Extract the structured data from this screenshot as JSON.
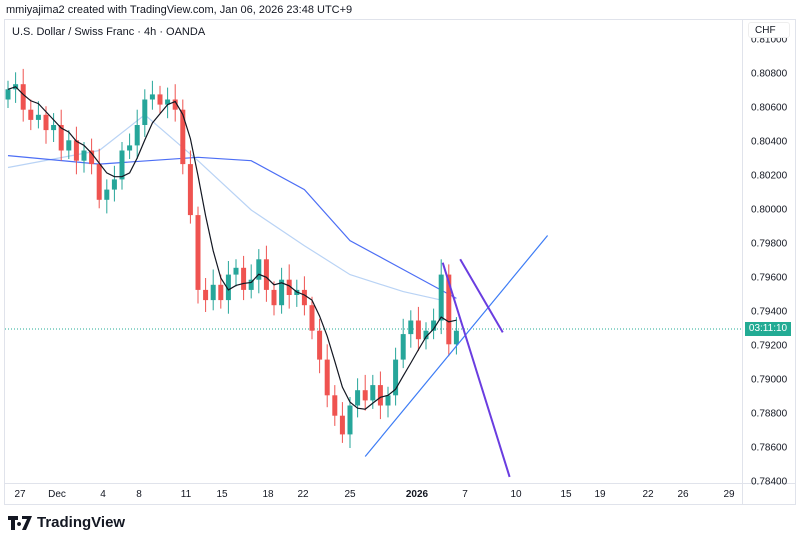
{
  "credit": "mmiyajima2 created with TradingView.com, Jan 06, 2026 23:48 UTC+9",
  "symbol_legend": "U.S. Dollar / Swiss Franc · 4h · OANDA",
  "currency": "CHF",
  "countdown": "03:11:10",
  "brand": "TradingView",
  "colors": {
    "up": "#26a69a",
    "down": "#ef5350",
    "ma_short": "#131722",
    "ma_long": "#4c6ef5",
    "ma_mid": "#b9d3f5",
    "trend": "#3d7cf5",
    "purple": "#6a3de0",
    "price_line": "#22ab94"
  },
  "chart_data": {
    "type": "candlestick",
    "yaxis": {
      "ticks": [
        "0.81000",
        "0.80800",
        "0.80600",
        "0.80400",
        "0.80200",
        "0.80000",
        "0.79800",
        "0.79600",
        "0.79400",
        "0.79200",
        "0.79000",
        "0.78800",
        "0.78600",
        "0.78400"
      ],
      "range": [
        0.784,
        0.81
      ]
    },
    "xaxis": {
      "ticks": [
        "27",
        "Dec",
        "4",
        "8",
        "11",
        "15",
        "18",
        "22",
        "25",
        "2026",
        "7",
        "10",
        "15",
        "19",
        "22",
        "26",
        "29"
      ]
    },
    "first_open": 0.8065,
    "close": [
      0.8071,
      0.8074,
      0.8059,
      0.8053,
      0.8056,
      0.8047,
      0.805,
      0.8035,
      0.8041,
      0.8029,
      0.8035,
      0.8027,
      0.8006,
      0.8012,
      0.8018,
      0.8035,
      0.8038,
      0.805,
      0.8065,
      0.8068,
      0.8062,
      0.8065,
      0.8059,
      0.8027,
      0.7997,
      0.7953,
      0.7947,
      0.7956,
      0.7947,
      0.7962,
      0.7966,
      0.7953,
      0.7959,
      0.7971,
      0.7953,
      0.7944,
      0.7959,
      0.795,
      0.7953,
      0.7944,
      0.7929,
      0.7912,
      0.7891,
      0.7879,
      0.7868,
      0.7885,
      0.7894,
      0.7888,
      0.7897,
      0.7885,
      0.7891,
      0.7912,
      0.7927,
      0.7935,
      0.7924,
      0.7929,
      0.7935,
      0.7962,
      0.7921,
      0.7929
    ],
    "last_price": 0.793,
    "ma_long": [
      [
        0,
        0.8032
      ],
      [
        12,
        0.8027
      ],
      [
        25,
        0.8031
      ],
      [
        32,
        0.8029
      ],
      [
        39,
        0.8012
      ],
      [
        45,
        0.7982
      ],
      [
        52,
        0.7965
      ],
      [
        59,
        0.7948
      ]
    ],
    "ma_mid": [
      [
        0,
        0.8025
      ],
      [
        12,
        0.8035
      ],
      [
        18,
        0.8056
      ],
      [
        25,
        0.8029
      ],
      [
        32,
        0.8
      ],
      [
        39,
        0.7979
      ],
      [
        45,
        0.7962
      ],
      [
        52,
        0.7952
      ],
      [
        57,
        0.7947
      ]
    ],
    "drawings": [
      {
        "kind": "trendline",
        "color": "trend",
        "from": [
          47,
          0.7855
        ],
        "to": [
          71,
          0.7985
        ]
      },
      {
        "kind": "trendline",
        "color": "purple",
        "from": [
          57.2,
          0.7969
        ],
        "to": [
          66,
          0.7843
        ]
      },
      {
        "kind": "trendline",
        "color": "purple",
        "from": [
          59.5,
          0.7971
        ],
        "to": [
          65.1,
          0.7928
        ]
      }
    ]
  }
}
